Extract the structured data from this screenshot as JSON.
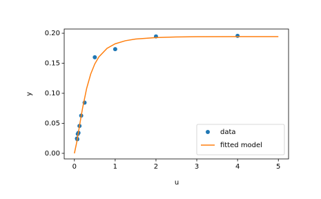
{
  "chart_data": {
    "type": "scatter",
    "xlabel": "u",
    "ylabel": "y",
    "xlim": [
      -0.25,
      5.25
    ],
    "xticks": [
      0,
      1,
      2,
      3,
      4,
      5
    ],
    "ylim": [
      -0.0093,
      0.207
    ],
    "yticks": [
      {
        "value": 0,
        "label": "0.00"
      },
      {
        "value": 0.05,
        "label": "0.05"
      },
      {
        "value": 0.1,
        "label": "0.10"
      },
      {
        "value": 0.15,
        "label": "0.15"
      },
      {
        "value": 0.2,
        "label": "0.20"
      }
    ],
    "legend": "lower right",
    "series": [
      {
        "name": "data",
        "type": "scatter",
        "color": "#1f77b4",
        "x": [
          4,
          2,
          1,
          0.5,
          0.25,
          0.167,
          0.125,
          0.1,
          0.0833,
          0.0714,
          0.0625
        ],
        "values": [
          0.1957,
          0.1947,
          0.1735,
          0.16,
          0.0844,
          0.0627,
          0.0456,
          0.0342,
          0.0323,
          0.0235,
          0.0246
        ]
      },
      {
        "name": "fitted model",
        "type": "line",
        "color": "#ff7f0e",
        "x": [
          0,
          0.05,
          0.1,
          0.15,
          0.2,
          0.3,
          0.4,
          0.5,
          0.6,
          0.8,
          1,
          1.25,
          1.5,
          2,
          2.5,
          3,
          4,
          5
        ],
        "values": [
          0,
          0.01607,
          0.03545,
          0.05574,
          0.07517,
          0.10804,
          0.13205,
          0.14887,
          0.1606,
          0.17483,
          0.1824,
          0.18751,
          0.19026,
          0.19281,
          0.19379,
          0.19419,
          0.19438,
          0.19433
        ]
      }
    ]
  }
}
